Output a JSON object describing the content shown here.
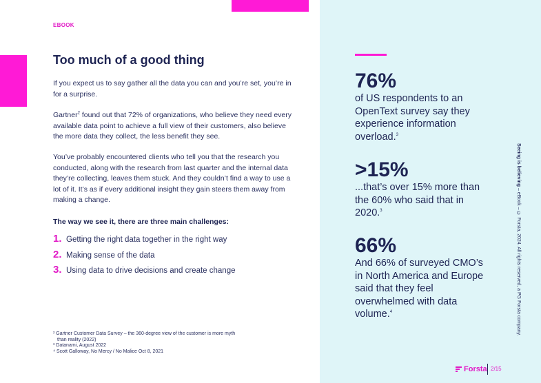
{
  "header": {
    "label": "EBOOK"
  },
  "article": {
    "title": "Too much of a good thing",
    "p1": "If you expect us to say gather all the data you can and you’re set, you’re in for a surprise.",
    "p2_before": "Gartner",
    "p2_sup": "2",
    "p2_after": " found out that 72% of organizations, who believe they need every available data point to achieve a full view of their customers, also believe the more data they collect, the less benefit they see.",
    "p3": "You’ve probably encountered clients who tell you that the research you conducted, along with the research from last quarter and the internal data they’re collecting, leaves them stuck. And they couldn’t find a way to use a lot of it. It’s as if every additional insight they gain steers them away from making a change.",
    "challenges_heading": "The way we see it, there are three main challenges:",
    "challenges": [
      {
        "num": "1.",
        "text": "Getting the right data together in the right way"
      },
      {
        "num": "2.",
        "text": "Making sense of the data"
      },
      {
        "num": "3.",
        "text": "Using data to drive decisions and create change"
      }
    ]
  },
  "footnotes": {
    "f2_line1": "² Gartner Customer Data Survey – the 360-degree view of the customer is more myth",
    "f2_line2": "than reality (2022)",
    "f3": "³ Datanami, August 2022",
    "f4": "⁴ Scott Galloway, No Mercy / No Malice Oct 8, 2021"
  },
  "stats": [
    {
      "value": "76%",
      "text": "of US respondents to an OpenText survey say they experience information overload.",
      "sup": "3"
    },
    {
      "value": ">15%",
      "text": "...that’s over 15% more than the 60% who said that in 2020.",
      "sup": "3"
    },
    {
      "value": "66%",
      "text": "And 66% of surveyed CMO’s in North America and Europe said that they feel overwhelmed with data volume.",
      "sup": "4"
    }
  ],
  "sidebar_text": {
    "strong": "Seeing is believing",
    "rest": " – eBook – © Forsta, 2024. All rights reserved, a PG Forsta company."
  },
  "footer": {
    "logo_text": "Forsta",
    "page": "2/15"
  },
  "colors": {
    "accent": "#ff1ad6",
    "navy": "#1e2453",
    "panel": "#dff5f8"
  }
}
